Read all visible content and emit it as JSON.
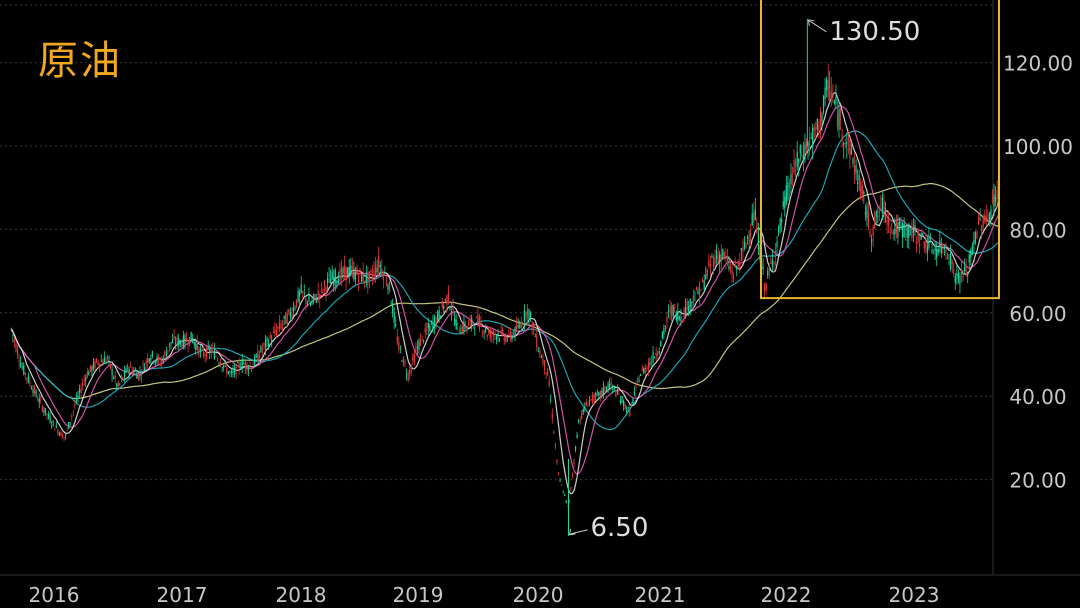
{
  "title": "原油",
  "colors": {
    "background": "#000000",
    "grid": "#3a3a3a",
    "axis_text": "#c8c8c8",
    "highlight_box": "#e8b530",
    "up_candle": "#18d8a0",
    "down_candle": "#e03838",
    "ma_short": "#e6e6e6",
    "ma_mid": "#e85ab8",
    "ma_long": "#1fb4c4",
    "ma_longest": "#d8d890"
  },
  "chart_data": {
    "type": "candlestick",
    "title": "原油",
    "x_ticks": [
      "2016",
      "2017",
      "2018",
      "2019",
      "2020",
      "2021",
      "2022",
      "2023"
    ],
    "y_ticks": [
      "20.00",
      "40.00",
      "60.00",
      "80.00",
      "100.00",
      "120.00"
    ],
    "ylim": [
      3,
      135
    ],
    "xlim": [
      "2015-09",
      "2023-09"
    ],
    "grid": "horizontal dashed",
    "annotations": [
      {
        "text": "130.50",
        "x": "2022-03",
        "y": 130.5
      },
      {
        "text": "6.50",
        "x": "2020-04",
        "y": 6.5
      }
    ],
    "highlight_region": {
      "x_start": "2021-11",
      "x_end": "2023-09",
      "y_low": 64,
      "y_high": 136
    },
    "series": [
      {
        "values_monthly_close_approx": [
          [
            "2015-09",
            56
          ],
          [
            "2015-10",
            47
          ],
          [
            "2015-11",
            42
          ],
          [
            "2015-12",
            37
          ],
          [
            "2016-01",
            33
          ],
          [
            "2016-02",
            30
          ],
          [
            "2016-03",
            38
          ],
          [
            "2016-04",
            45
          ],
          [
            "2016-05",
            48
          ],
          [
            "2016-06",
            49
          ],
          [
            "2016-07",
            42
          ],
          [
            "2016-08",
            47
          ],
          [
            "2016-09",
            45
          ],
          [
            "2016-10",
            50
          ],
          [
            "2016-11",
            48
          ],
          [
            "2016-12",
            53
          ],
          [
            "2017-01",
            53
          ],
          [
            "2017-02",
            54
          ],
          [
            "2017-03",
            50
          ],
          [
            "2017-04",
            51
          ],
          [
            "2017-05",
            48
          ],
          [
            "2017-06",
            45
          ],
          [
            "2017-07",
            48
          ],
          [
            "2017-08",
            47
          ],
          [
            "2017-09",
            51
          ],
          [
            "2017-10",
            54
          ],
          [
            "2017-11",
            57
          ],
          [
            "2017-12",
            60
          ],
          [
            "2018-01",
            65
          ],
          [
            "2018-02",
            62
          ],
          [
            "2018-03",
            65
          ],
          [
            "2018-04",
            68
          ],
          [
            "2018-05",
            69
          ],
          [
            "2018-06",
            70
          ],
          [
            "2018-07",
            69
          ],
          [
            "2018-08",
            68
          ],
          [
            "2018-09",
            72
          ],
          [
            "2018-10",
            67
          ],
          [
            "2018-11",
            52
          ],
          [
            "2018-12",
            45
          ],
          [
            "2019-01",
            52
          ],
          [
            "2019-02",
            56
          ],
          [
            "2019-03",
            59
          ],
          [
            "2019-04",
            64
          ],
          [
            "2019-05",
            56
          ],
          [
            "2019-06",
            57
          ],
          [
            "2019-07",
            58
          ],
          [
            "2019-08",
            55
          ],
          [
            "2019-09",
            55
          ],
          [
            "2019-10",
            54
          ],
          [
            "2019-11",
            56
          ],
          [
            "2019-12",
            61
          ],
          [
            "2020-01",
            52
          ],
          [
            "2020-02",
            45
          ],
          [
            "2020-03",
            21
          ],
          [
            "2020-04",
            13
          ],
          [
            "2020-05",
            34
          ],
          [
            "2020-06",
            39
          ],
          [
            "2020-07",
            40
          ],
          [
            "2020-08",
            43
          ],
          [
            "2020-09",
            40
          ],
          [
            "2020-10",
            36
          ],
          [
            "2020-11",
            45
          ],
          [
            "2020-12",
            48
          ],
          [
            "2021-01",
            52
          ],
          [
            "2021-02",
            61
          ],
          [
            "2021-03",
            59
          ],
          [
            "2021-04",
            63
          ],
          [
            "2021-05",
            66
          ],
          [
            "2021-06",
            73
          ],
          [
            "2021-07",
            74
          ],
          [
            "2021-08",
            69
          ],
          [
            "2021-09",
            75
          ],
          [
            "2021-10",
            84
          ],
          [
            "2021-11",
            66
          ],
          [
            "2021-12",
            75
          ],
          [
            "2022-01",
            88
          ],
          [
            "2022-02",
            96
          ],
          [
            "2022-03",
            100
          ],
          [
            "2022-04",
            104
          ],
          [
            "2022-05",
            115
          ],
          [
            "2022-06",
            106
          ],
          [
            "2022-07",
            99
          ],
          [
            "2022-08",
            90
          ],
          [
            "2022-09",
            79
          ],
          [
            "2022-10",
            86
          ],
          [
            "2022-11",
            80
          ],
          [
            "2022-12",
            80
          ],
          [
            "2023-01",
            79
          ],
          [
            "2023-02",
            77
          ],
          [
            "2023-03",
            75
          ],
          [
            "2023-04",
            76
          ],
          [
            "2023-05",
            68
          ],
          [
            "2023-06",
            70
          ],
          [
            "2023-07",
            81
          ],
          [
            "2023-08",
            83
          ],
          [
            "2023-09",
            91
          ]
        ]
      }
    ]
  }
}
